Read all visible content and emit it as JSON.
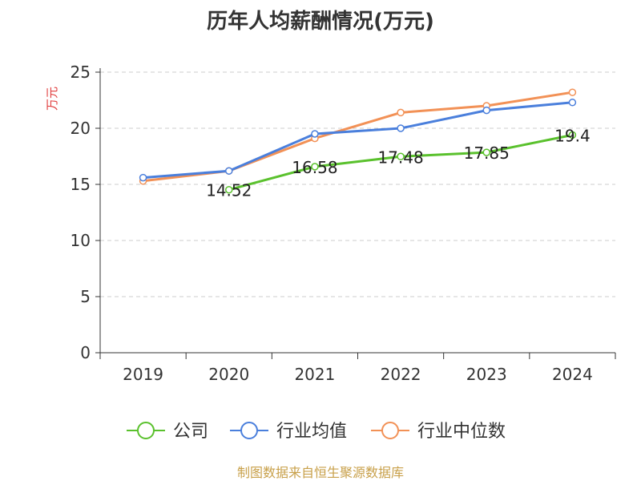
{
  "chart_data": {
    "type": "line",
    "title": "历年人均薪酬情况(万元)",
    "ylabel": "万元",
    "xlabel": "",
    "categories": [
      "2019",
      "2020",
      "2021",
      "2022",
      "2023",
      "2024"
    ],
    "ylim": [
      0,
      25
    ],
    "yticks": [
      0,
      5,
      10,
      15,
      20,
      25
    ],
    "grid": true,
    "legend_position": "bottom",
    "series": [
      {
        "name": "公司",
        "color": "#5ac12d",
        "values": [
          null,
          14.52,
          16.58,
          17.48,
          17.85,
          19.4
        ],
        "labels": [
          "",
          "14.52",
          "16.58",
          "17.48",
          "17.85",
          "19.4"
        ]
      },
      {
        "name": "行业均值",
        "color": "#4a7fdc",
        "values": [
          15.6,
          16.2,
          19.5,
          20.0,
          21.6,
          22.3
        ],
        "labels": []
      },
      {
        "name": "行业中位数",
        "color": "#f29156",
        "values": [
          15.3,
          16.2,
          19.1,
          21.4,
          22.0,
          23.2
        ],
        "labels": []
      }
    ]
  },
  "footer": "制图数据来自恒生聚源数据库"
}
